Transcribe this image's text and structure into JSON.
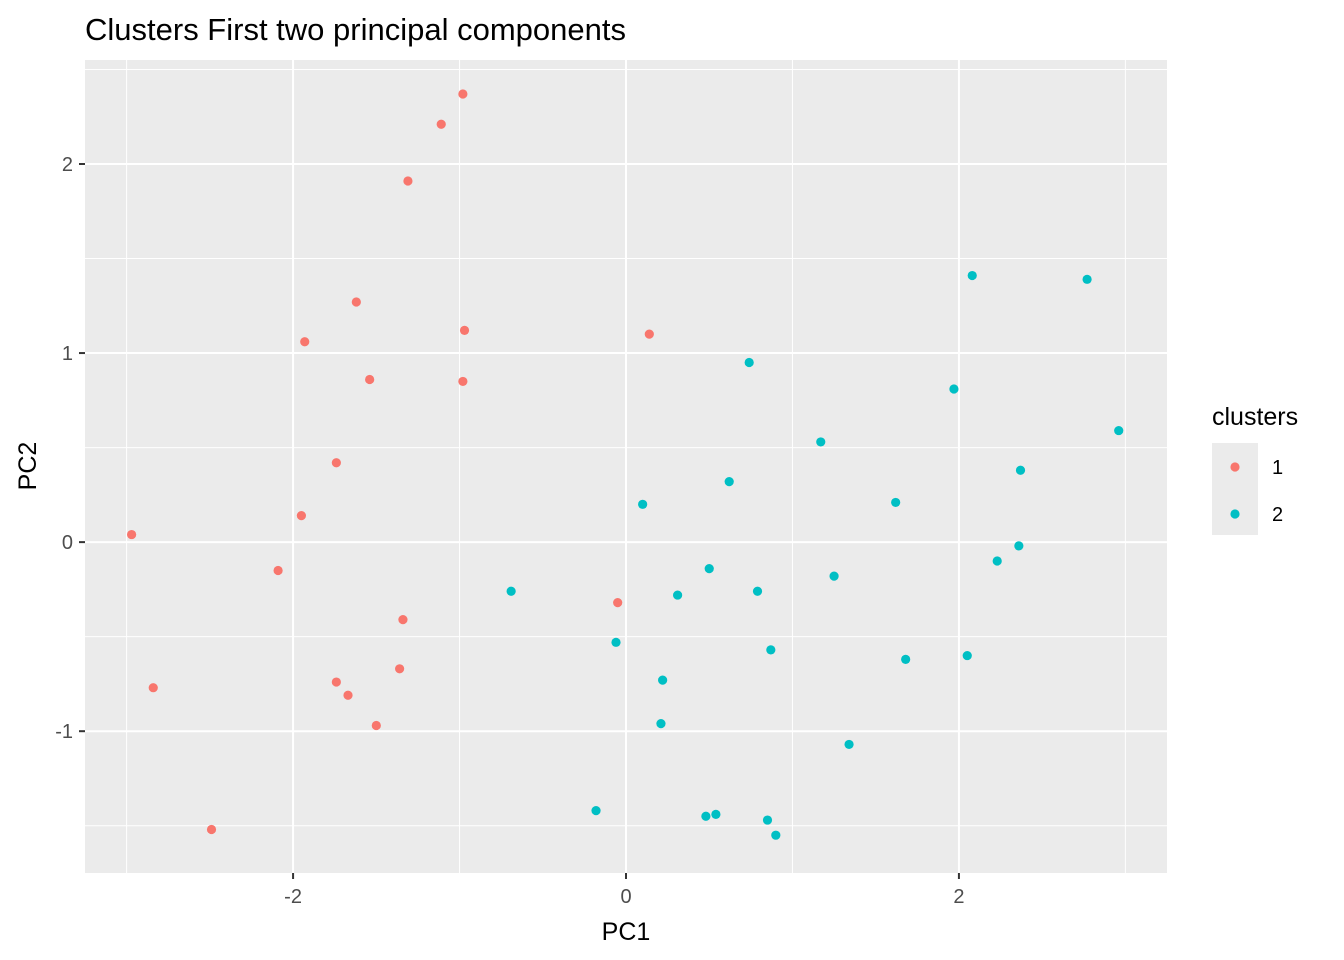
{
  "chart_data": {
    "type": "scatter",
    "title": "Clusters First two principal components",
    "xlabel": "PC1",
    "ylabel": "PC2",
    "xlim": [
      -3.25,
      3.25
    ],
    "ylim": [
      -1.75,
      2.55
    ],
    "x_major_ticks": [
      -2,
      0,
      2
    ],
    "x_tick_labels": [
      "-2",
      "0",
      "2"
    ],
    "x_minor_ticks": [
      -3,
      -1,
      1,
      3
    ],
    "y_major_ticks": [
      -1,
      0,
      1,
      2
    ],
    "y_tick_labels": [
      "-1",
      "0",
      "1",
      "2"
    ],
    "y_minor_ticks": [
      -1.5,
      -0.5,
      0.5,
      1.5,
      2.5
    ],
    "grid": true,
    "panel_background": "#ebebeb",
    "legend": {
      "title": "clusters",
      "position": "right"
    },
    "series": [
      {
        "name": "1",
        "color": "#f8766d",
        "points": [
          [
            -0.98,
            2.37
          ],
          [
            -1.11,
            2.21
          ],
          [
            -1.31,
            1.91
          ],
          [
            -1.62,
            1.27
          ],
          [
            -0.97,
            1.12
          ],
          [
            -1.93,
            1.06
          ],
          [
            -1.54,
            0.86
          ],
          [
            -0.98,
            0.85
          ],
          [
            0.14,
            1.1
          ],
          [
            -1.74,
            0.42
          ],
          [
            -1.95,
            0.14
          ],
          [
            -2.97,
            0.04
          ],
          [
            -2.09,
            -0.15
          ],
          [
            -0.05,
            -0.32
          ],
          [
            -1.34,
            -0.41
          ],
          [
            -1.36,
            -0.67
          ],
          [
            -1.74,
            -0.74
          ],
          [
            -1.67,
            -0.81
          ],
          [
            -1.5,
            -0.97
          ],
          [
            -2.84,
            -0.77
          ],
          [
            -2.49,
            -1.52
          ]
        ]
      },
      {
        "name": "2",
        "color": "#00bfc4",
        "points": [
          [
            2.08,
            1.41
          ],
          [
            2.77,
            1.39
          ],
          [
            0.74,
            0.95
          ],
          [
            1.97,
            0.81
          ],
          [
            2.96,
            0.59
          ],
          [
            1.17,
            0.53
          ],
          [
            2.37,
            0.38
          ],
          [
            0.62,
            0.32
          ],
          [
            0.1,
            0.2
          ],
          [
            1.62,
            0.21
          ],
          [
            2.36,
            -0.02
          ],
          [
            2.23,
            -0.1
          ],
          [
            0.5,
            -0.14
          ],
          [
            1.25,
            -0.18
          ],
          [
            0.31,
            -0.28
          ],
          [
            0.79,
            -0.26
          ],
          [
            -0.69,
            -0.26
          ],
          [
            -0.06,
            -0.53
          ],
          [
            0.87,
            -0.57
          ],
          [
            1.68,
            -0.62
          ],
          [
            2.05,
            -0.6
          ],
          [
            0.22,
            -0.73
          ],
          [
            0.21,
            -0.96
          ],
          [
            1.34,
            -1.07
          ],
          [
            -0.18,
            -1.42
          ],
          [
            0.48,
            -1.45
          ],
          [
            0.54,
            -1.44
          ],
          [
            0.85,
            -1.47
          ],
          [
            0.9,
            -1.55
          ]
        ]
      }
    ]
  }
}
